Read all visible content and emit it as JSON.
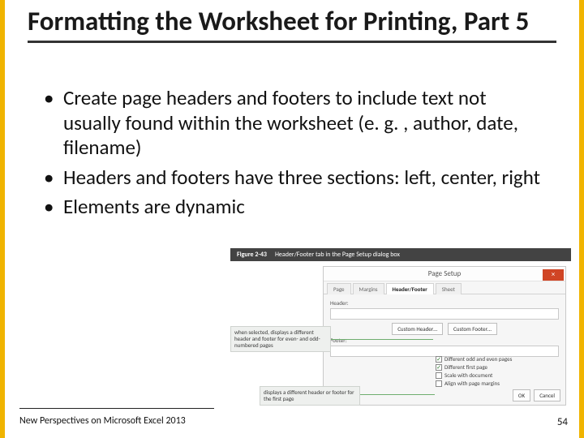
{
  "colors": {
    "accent_border": "#f0b400",
    "title_underline": "#333333",
    "text": "#111111",
    "figure_bar_bg": "#434343",
    "dialog_bg": "#f6f6f6",
    "dialog_border": "#c9c9c9",
    "close_btn": "#d04525",
    "callout_bg": "#eef0ee",
    "lead_line": "#6fae6f"
  },
  "title": "Formatting the Worksheet for Printing, Part 5",
  "bullets": [
    "Create page headers and footers to include text not usually found within the worksheet (e. g. , author, date, filename)",
    "Headers and footers have three sections: left, center, right",
    "Elements are dynamic"
  ],
  "figure": {
    "label": "Figure 2-43",
    "caption": "Header/Footer tab in the Page Setup dialog box",
    "dialog": {
      "title": "Page Setup",
      "close_glyph": "×",
      "tabs": [
        "Page",
        "Margins",
        "Header/Footer",
        "Sheet"
      ],
      "active_tab_index": 2,
      "header_section_label": "Header:",
      "footer_section_label": "Footer:",
      "buttons": {
        "custom_header": "Custom Header…",
        "custom_footer": "Custom Footer…"
      },
      "checks": [
        {
          "label": "Different odd and even pages",
          "checked": true
        },
        {
          "label": "Different first page",
          "checked": true
        },
        {
          "label": "Scale with document",
          "checked": false
        },
        {
          "label": "Align with page margins",
          "checked": false
        }
      ],
      "footer_buttons": {
        "ok": "OK",
        "cancel": "Cancel"
      }
    },
    "callouts": {
      "odd_even": "when selected, displays a different header and footer for even- and odd-numbered pages",
      "first_page": "displays a different header or footer for the first page"
    }
  },
  "footer": {
    "text": "New Perspectives on Microsoft Excel 2013",
    "page_number": "54"
  }
}
